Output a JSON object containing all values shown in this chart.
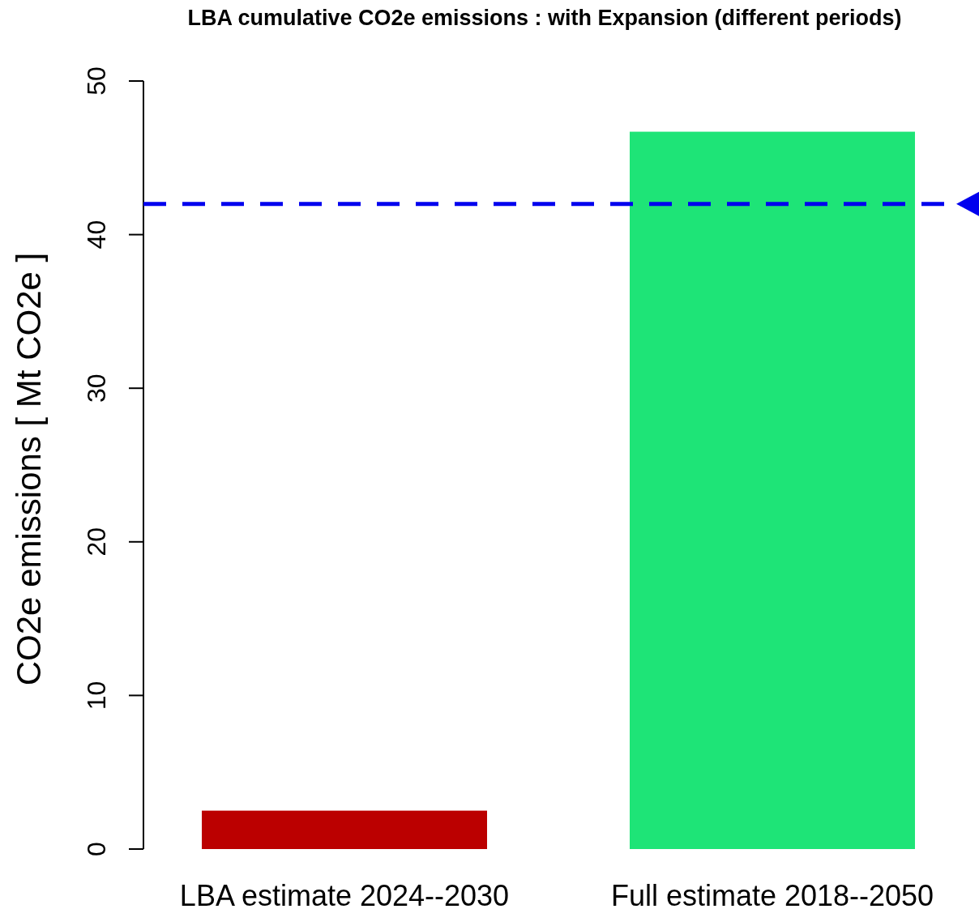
{
  "chart_data": {
    "type": "bar",
    "title": "LBA cumulative CO2e emissions : with Expansion (different periods)",
    "ylabel": "CO2e emissions  [ Mt CO2e ]",
    "categories": [
      "LBA estimate 2024--2030",
      "Full estimate 2018--2050"
    ],
    "values": [
      2.5,
      46.7
    ],
    "colors": [
      "#bb0000",
      "#1ee477"
    ],
    "ylim": [
      0,
      50
    ],
    "yticks": [
      0,
      10,
      20,
      30,
      40,
      50
    ],
    "grid": false,
    "ref_lines": [
      {
        "axis": "y",
        "value": 42,
        "color": "#0000ee",
        "line_style": "dashed"
      }
    ]
  }
}
